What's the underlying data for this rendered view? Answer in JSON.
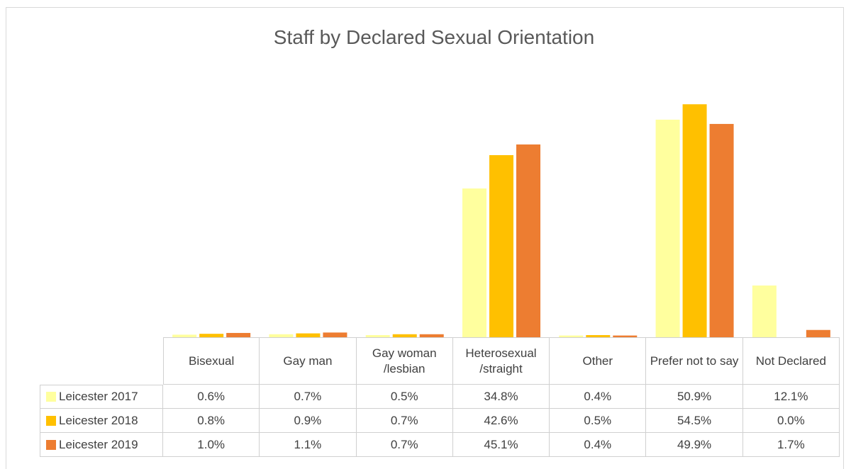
{
  "chart_data": {
    "type": "bar",
    "title": "Staff by Declared Sexual Orientation",
    "categories": [
      "Bisexual",
      "Gay man",
      "Gay woman /lesbian",
      "Heterosexual /straight",
      "Other",
      "Prefer not to say",
      "Not Declared"
    ],
    "series": [
      {
        "name": "Leicester 2017",
        "color": "#FFFF9E",
        "values": [
          0.6,
          0.7,
          0.5,
          34.8,
          0.4,
          50.9,
          12.1
        ],
        "value_labels": [
          "0.6%",
          "0.7%",
          "0.5%",
          "34.8%",
          "0.4%",
          "50.9%",
          "12.1%"
        ]
      },
      {
        "name": "Leicester 2018",
        "color": "#FFC000",
        "values": [
          0.8,
          0.9,
          0.7,
          42.6,
          0.5,
          54.5,
          0
        ],
        "value_labels": [
          "0.8%",
          "0.9%",
          "0.7%",
          "42.6%",
          "0.5%",
          "54.5%",
          "0.0%"
        ]
      },
      {
        "name": "Leicester 2019",
        "color": "#ED7D31",
        "values": [
          1,
          1.1,
          0.7,
          45.1,
          0.4,
          49.9,
          1.7
        ],
        "value_labels": [
          "1.0%",
          "1.1%",
          "0.7%",
          "45.1%",
          "0.4%",
          "49.9%",
          "1.7%"
        ]
      }
    ],
    "ylim": [
      0,
      60
    ]
  }
}
